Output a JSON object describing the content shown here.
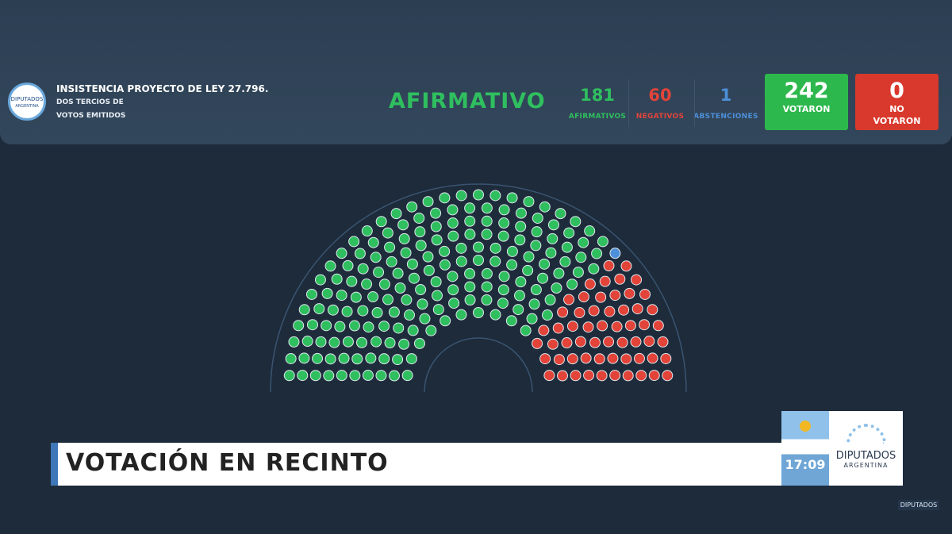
{
  "header": {
    "logo": [
      "DIPUTADOS",
      "ARGENTINA"
    ],
    "title": "INSISTENCIA PROYECTO DE LEY 27.796.",
    "subtitle": [
      "DOS TERCIOS DE",
      "VOTOS EMITIDOS"
    ]
  },
  "result": "AFIRMATIVO",
  "counts": [
    {
      "value": 181,
      "label": "AFIRMATIVOS",
      "color": "#2fbf5f"
    },
    {
      "value": 60,
      "label": "NEGATIVOS",
      "color": "#e2443a"
    },
    {
      "value": 1,
      "label": "ABSTENCIONES",
      "color": "#4d8fd8"
    }
  ],
  "totals": [
    {
      "value": 242,
      "label": [
        "VOTARON"
      ],
      "color": "#2db84d"
    },
    {
      "value": 0,
      "label": [
        "NO",
        "VOTARON"
      ],
      "color": "#d8392c"
    }
  ],
  "lower_third": {
    "title": "VOTACIÓN EN RECINTO",
    "time": "17:09",
    "brand": "DIPUTADOS",
    "brand_sub": "ARGENTINA"
  },
  "watermark": "DIPUTADOS"
}
